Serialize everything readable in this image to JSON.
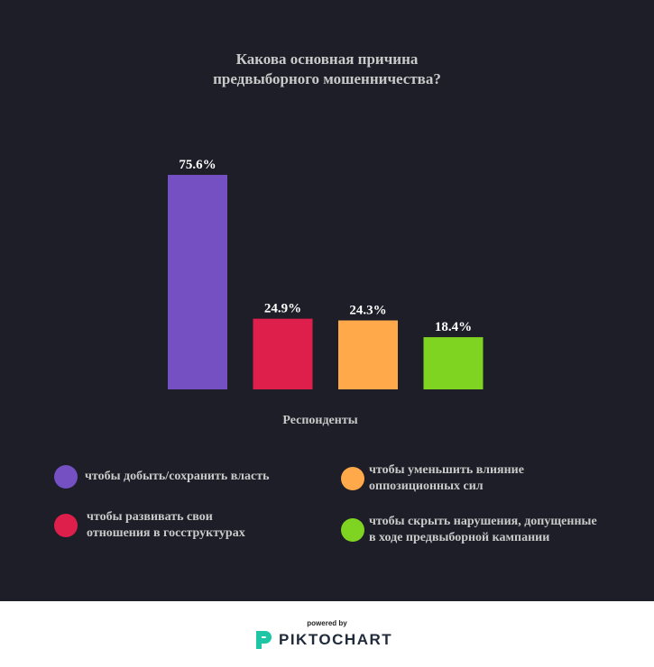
{
  "title_line1": "Какова основная причина",
  "title_line2": "предвыборного мошенничества?",
  "chart_data": {
    "type": "bar",
    "title": "Какова основная причина предвыборного мошенничества?",
    "xlabel": "Респонденты",
    "ylabel": "",
    "categories": [
      "чтобы добыть/сохранить власть",
      "чтобы развивать свои отношения в госструктурах",
      "чтобы уменьшить влияние оппозиционных сил",
      "чтобы скрыть нарушения, допущенные в ходе предвыборной кампании"
    ],
    "values": [
      75.6,
      24.9,
      24.3,
      18.4
    ],
    "value_labels": [
      "75.6%",
      "24.9%",
      "24.3%",
      "18.4%"
    ],
    "colors": [
      "#7450c3",
      "#df1f4b",
      "#ffa94a",
      "#7fd321"
    ],
    "ylim": [
      0,
      75.6
    ],
    "grid": false,
    "legend_position": "bottom"
  },
  "legend": [
    {
      "line1": "чтобы добыть/сохранить власть",
      "line2": "",
      "color": "#7450c3"
    },
    {
      "line1": "чтобы развивать свои",
      "line2": "отношения в госструктурах",
      "color": "#df1f4b"
    },
    {
      "line1": "чтобы уменьшить влияние",
      "line2": "оппозиционных сил",
      "color": "#ffa94a"
    },
    {
      "line1": "чтобы скрыть нарушения, допущенные",
      "line2": "в ходе предвыборной кампании",
      "color": "#7fd321"
    }
  ],
  "footer": {
    "powered_by": "powered by",
    "brand": "PIKTOCHART",
    "brand_color": "#1fc6a6"
  }
}
